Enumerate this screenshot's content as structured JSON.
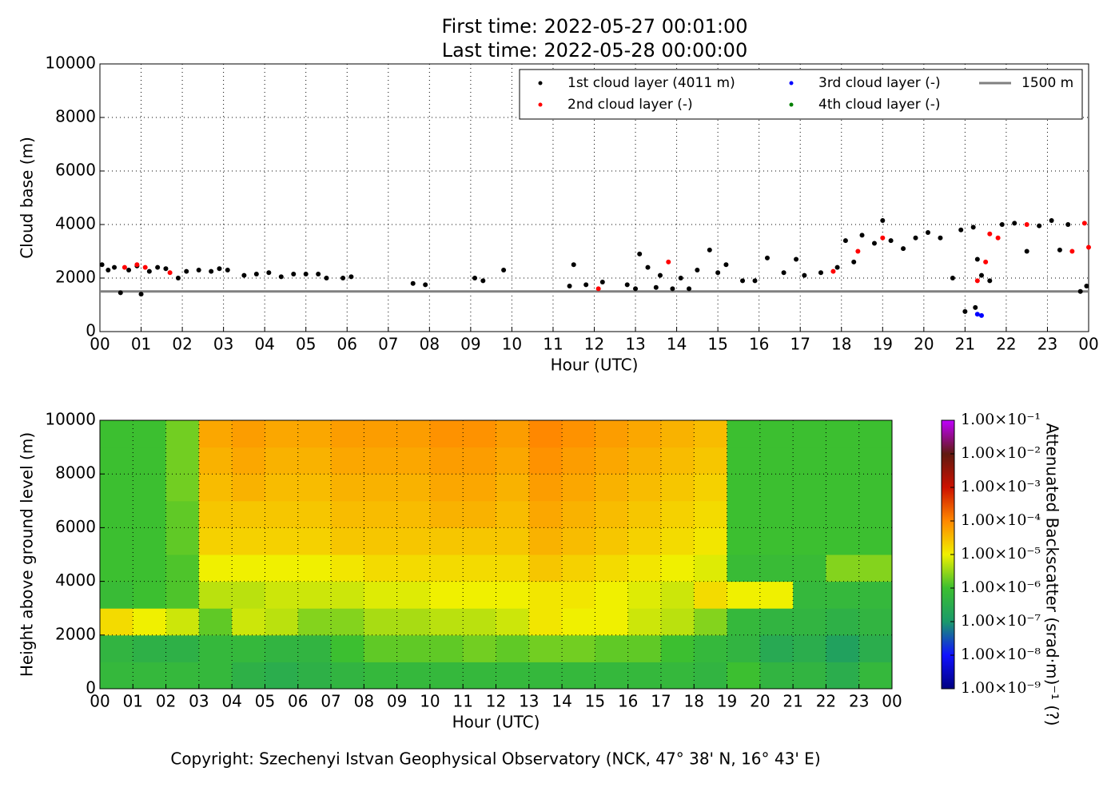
{
  "chart_data": [
    {
      "type": "scatter",
      "title": "First time: 2022-05-27 00:01:00",
      "subtitle": "Last time: 2022-05-28 00:00:00",
      "x_label": "Hour (UTC)",
      "y_label": "Cloud base (m)",
      "xlim": [
        0,
        24
      ],
      "ylim": [
        0,
        10000
      ],
      "xticks": [
        {
          "value": 0,
          "label": "00"
        },
        {
          "value": 1,
          "label": "01"
        },
        {
          "value": 2,
          "label": "02"
        },
        {
          "value": 3,
          "label": "03"
        },
        {
          "value": 4,
          "label": "04"
        },
        {
          "value": 5,
          "label": "05"
        },
        {
          "value": 6,
          "label": "06"
        },
        {
          "value": 7,
          "label": "07"
        },
        {
          "value": 8,
          "label": "08"
        },
        {
          "value": 9,
          "label": "09"
        },
        {
          "value": 10,
          "label": "10"
        },
        {
          "value": 11,
          "label": "11"
        },
        {
          "value": 12,
          "label": "12"
        },
        {
          "value": 13,
          "label": "13"
        },
        {
          "value": 14,
          "label": "14"
        },
        {
          "value": 15,
          "label": "15"
        },
        {
          "value": 16,
          "label": "16"
        },
        {
          "value": 17,
          "label": "17"
        },
        {
          "value": 18,
          "label": "18"
        },
        {
          "value": 19,
          "label": "19"
        },
        {
          "value": 20,
          "label": "20"
        },
        {
          "value": 21,
          "label": "21"
        },
        {
          "value": 22,
          "label": "22"
        },
        {
          "value": 23,
          "label": "23"
        },
        {
          "value": 24,
          "label": "00"
        }
      ],
      "yticks": [
        0,
        2000,
        4000,
        6000,
        8000,
        10000
      ],
      "grid": true,
      "legend": "upper right",
      "series": [
        {
          "name": "1st cloud layer (4011 m)",
          "color": "#000000",
          "x": [
            0.05,
            0.2,
            0.35,
            0.5,
            0.7,
            0.9,
            1.0,
            1.2,
            1.4,
            1.6,
            1.9,
            2.1,
            2.4,
            2.7,
            2.9,
            3.1,
            3.5,
            3.8,
            4.1,
            4.4,
            4.7,
            5.0,
            5.3,
            5.5,
            5.9,
            6.1,
            7.6,
            7.9,
            9.1,
            9.3,
            9.8,
            11.4,
            11.5,
            11.8,
            12.2,
            12.8,
            13.0,
            13.1,
            13.3,
            13.5,
            13.6,
            13.9,
            14.1,
            14.3,
            14.5,
            14.8,
            15.0,
            15.2,
            15.6,
            15.9,
            16.2,
            16.6,
            16.9,
            17.1,
            17.5,
            17.9,
            18.1,
            18.3,
            18.5,
            18.8,
            19.0,
            19.2,
            19.5,
            19.8,
            20.1,
            20.4,
            20.7,
            20.9,
            21.0,
            21.2,
            21.25,
            21.3,
            21.4,
            21.6,
            21.9,
            22.2,
            22.5,
            22.8,
            23.1,
            23.3,
            23.5,
            23.8,
            23.95
          ],
          "values": [
            2500,
            2300,
            2400,
            1450,
            2300,
            2450,
            1400,
            2250,
            2400,
            2350,
            2000,
            2250,
            2300,
            2250,
            2350,
            2300,
            2100,
            2150,
            2200,
            2050,
            2150,
            2150,
            2150,
            2000,
            2000,
            2050,
            1800,
            1750,
            2000,
            1900,
            2300,
            1700,
            2500,
            1750,
            1850,
            1750,
            1600,
            2900,
            2400,
            1650,
            2100,
            1600,
            2000,
            1600,
            2300,
            3050,
            2200,
            2500,
            1900,
            1900,
            2750,
            2200,
            2700,
            2100,
            2200,
            2400,
            3400,
            2600,
            3600,
            3300,
            4150,
            3400,
            3100,
            3500,
            3700,
            3500,
            2000,
            3800,
            750,
            3900,
            900,
            2700,
            2100,
            1900,
            4000,
            4050,
            3000,
            3950,
            4150,
            3050,
            4000,
            1500,
            1700
          ]
        },
        {
          "name": "2nd cloud layer (-)",
          "color": "#ff0000",
          "x": [
            0.6,
            0.9,
            1.1,
            1.7,
            12.1,
            13.8,
            17.8,
            18.4,
            19.0,
            21.3,
            21.5,
            21.6,
            21.8,
            22.5,
            23.6,
            23.9,
            24.0
          ],
          "values": [
            2400,
            2500,
            2400,
            2200,
            1600,
            2600,
            2250,
            3000,
            3500,
            1900,
            2600,
            3650,
            3500,
            4000,
            3000,
            4050,
            3150
          ]
        },
        {
          "name": "3rd cloud layer (-)",
          "color": "#0000ff",
          "x": [
            21.3,
            21.4
          ],
          "values": [
            650,
            600
          ]
        },
        {
          "name": "4th cloud layer (-)",
          "color": "#008000",
          "x": [],
          "values": []
        }
      ],
      "hlines": [
        {
          "name": "1500 m",
          "color": "#808080",
          "value": 1500
        }
      ]
    },
    {
      "type": "heatmap",
      "x_label": "Hour (UTC)",
      "y_label": "Height above ground level (m)",
      "xlim": [
        0,
        24
      ],
      "ylim": [
        0,
        10000
      ],
      "xticks": [
        {
          "value": 0,
          "label": "00"
        },
        {
          "value": 1,
          "label": "01"
        },
        {
          "value": 2,
          "label": "02"
        },
        {
          "value": 3,
          "label": "03"
        },
        {
          "value": 4,
          "label": "04"
        },
        {
          "value": 5,
          "label": "05"
        },
        {
          "value": 6,
          "label": "06"
        },
        {
          "value": 7,
          "label": "07"
        },
        {
          "value": 8,
          "label": "08"
        },
        {
          "value": 9,
          "label": "09"
        },
        {
          "value": 10,
          "label": "10"
        },
        {
          "value": 11,
          "label": "11"
        },
        {
          "value": 12,
          "label": "12"
        },
        {
          "value": 13,
          "label": "13"
        },
        {
          "value": 14,
          "label": "14"
        },
        {
          "value": 15,
          "label": "15"
        },
        {
          "value": 16,
          "label": "16"
        },
        {
          "value": 17,
          "label": "17"
        },
        {
          "value": 18,
          "label": "18"
        },
        {
          "value": 19,
          "label": "19"
        },
        {
          "value": 20,
          "label": "20"
        },
        {
          "value": 21,
          "label": "21"
        },
        {
          "value": 22,
          "label": "22"
        },
        {
          "value": 23,
          "label": "23"
        },
        {
          "value": 24,
          "label": "00"
        }
      ],
      "yticks": [
        0,
        2000,
        4000,
        6000,
        8000,
        10000
      ],
      "grid": true,
      "xbins": [
        0,
        1,
        2,
        3,
        4,
        5,
        6,
        7,
        8,
        9,
        10,
        11,
        12,
        13,
        14,
        15,
        16,
        17,
        18,
        19,
        20,
        21,
        22,
        23,
        24
      ],
      "ybins": [
        0,
        1000,
        2000,
        3000,
        4000,
        5000,
        6000,
        7000,
        8000,
        9000,
        10000
      ],
      "values": [
        [
          -6.2,
          -6.2,
          -6.2,
          -6.2,
          -6.4,
          -6.5,
          -6.4,
          -6.3,
          -6.2,
          -6.2,
          -6.2,
          -6.2,
          -6.2,
          -6.2,
          -6.2,
          -6.2,
          -6.2,
          -6.2,
          -6.3,
          -6.0,
          -6.3,
          -6.3,
          -6.5,
          -6.2
        ],
        [
          -6.3,
          -6.4,
          -6.4,
          -6.2,
          -6.2,
          -6.3,
          -6.3,
          -6.0,
          -5.8,
          -5.8,
          -5.8,
          -5.7,
          -5.8,
          -5.7,
          -5.7,
          -5.8,
          -5.8,
          -6.0,
          -6.2,
          -6.3,
          -6.6,
          -6.5,
          -6.8,
          -6.5
        ],
        [
          -4.8,
          -5.0,
          -5.2,
          -5.8,
          -5.2,
          -5.3,
          -5.6,
          -5.6,
          -5.4,
          -5.4,
          -5.3,
          -5.3,
          -5.2,
          -4.9,
          -5.0,
          -5.0,
          -5.2,
          -5.3,
          -5.6,
          -6.2,
          -6.3,
          -6.3,
          -6.4,
          -6.3
        ],
        [
          -6.1,
          -6.0,
          -5.9,
          -5.3,
          -5.3,
          -5.2,
          -5.2,
          -5.2,
          -5.1,
          -5.1,
          -5.0,
          -5.0,
          -5.0,
          -4.9,
          -4.9,
          -5.0,
          -5.1,
          -5.2,
          -4.8,
          -5.0,
          -5.0,
          -6.2,
          -6.2,
          -6.2
        ],
        [
          -6.0,
          -6.0,
          -5.9,
          -5.0,
          -5.0,
          -5.0,
          -5.0,
          -4.9,
          -4.8,
          -4.8,
          -4.8,
          -4.8,
          -4.8,
          -4.6,
          -4.7,
          -4.8,
          -4.9,
          -5.0,
          -5.1,
          -6.1,
          -6.1,
          -6.1,
          -5.6,
          -5.6
        ],
        [
          -6.0,
          -6.0,
          -5.8,
          -4.7,
          -4.7,
          -4.7,
          -4.7,
          -4.6,
          -4.6,
          -4.6,
          -4.6,
          -4.6,
          -4.6,
          -4.4,
          -4.5,
          -4.6,
          -4.7,
          -4.8,
          -4.9,
          -6.0,
          -6.0,
          -6.0,
          -6.0,
          -6.0
        ],
        [
          -6.0,
          -6.0,
          -5.8,
          -4.6,
          -4.6,
          -4.6,
          -4.6,
          -4.5,
          -4.5,
          -4.5,
          -4.4,
          -4.4,
          -4.5,
          -4.3,
          -4.4,
          -4.5,
          -4.6,
          -4.7,
          -4.8,
          -6.0,
          -6.0,
          -6.0,
          -6.0,
          -6.0
        ],
        [
          -6.0,
          -6.0,
          -5.7,
          -4.5,
          -4.4,
          -4.5,
          -4.5,
          -4.4,
          -4.4,
          -4.4,
          -4.3,
          -4.3,
          -4.4,
          -4.2,
          -4.3,
          -4.4,
          -4.5,
          -4.6,
          -4.7,
          -6.0,
          -6.0,
          -6.0,
          -6.0,
          -6.0
        ],
        [
          -6.0,
          -6.0,
          -5.7,
          -4.4,
          -4.3,
          -4.4,
          -4.4,
          -4.3,
          -4.3,
          -4.3,
          -4.2,
          -4.2,
          -4.3,
          -4.1,
          -4.2,
          -4.3,
          -4.4,
          -4.5,
          -4.6,
          -6.0,
          -6.0,
          -6.0,
          -6.0,
          -6.0
        ],
        [
          -6.0,
          -6.0,
          -5.7,
          -4.3,
          -4.2,
          -4.3,
          -4.3,
          -4.2,
          -4.2,
          -4.2,
          -4.1,
          -4.1,
          -4.2,
          -4.0,
          -4.1,
          -4.2,
          -4.3,
          -4.4,
          -4.5,
          -6.0,
          -6.0,
          -6.0,
          -6.0,
          -6.0
        ]
      ],
      "colorbar": {
        "label": "Attenuated Backscatter (srad·m)⁻¹ (?)",
        "lim": [
          -9,
          -1
        ],
        "colormap": [
          "#000080",
          "#1010ff",
          "#1a9a6a",
          "#3cbf30",
          "#f0f000",
          "#ff8800",
          "#cc1100",
          "#601a10",
          "#c000ff"
        ],
        "ticks": [
          {
            "value": -9,
            "label": "1.00×10⁻⁹"
          },
          {
            "value": -8,
            "label": "1.00×10⁻⁸"
          },
          {
            "value": -7,
            "label": "1.00×10⁻⁷"
          },
          {
            "value": -6,
            "label": "1.00×10⁻⁶"
          },
          {
            "value": -5,
            "label": "1.00×10⁻⁵"
          },
          {
            "value": -4,
            "label": "1.00×10⁻⁴"
          },
          {
            "value": -3,
            "label": "1.00×10⁻³"
          },
          {
            "value": -2,
            "label": "1.00×10⁻²"
          },
          {
            "value": -1,
            "label": "1.00×10⁻¹"
          }
        ]
      }
    }
  ],
  "footer": "Copyright: Szechenyi Istvan Geophysical Observatory (NCK, 47° 38' N, 16° 43' E)"
}
